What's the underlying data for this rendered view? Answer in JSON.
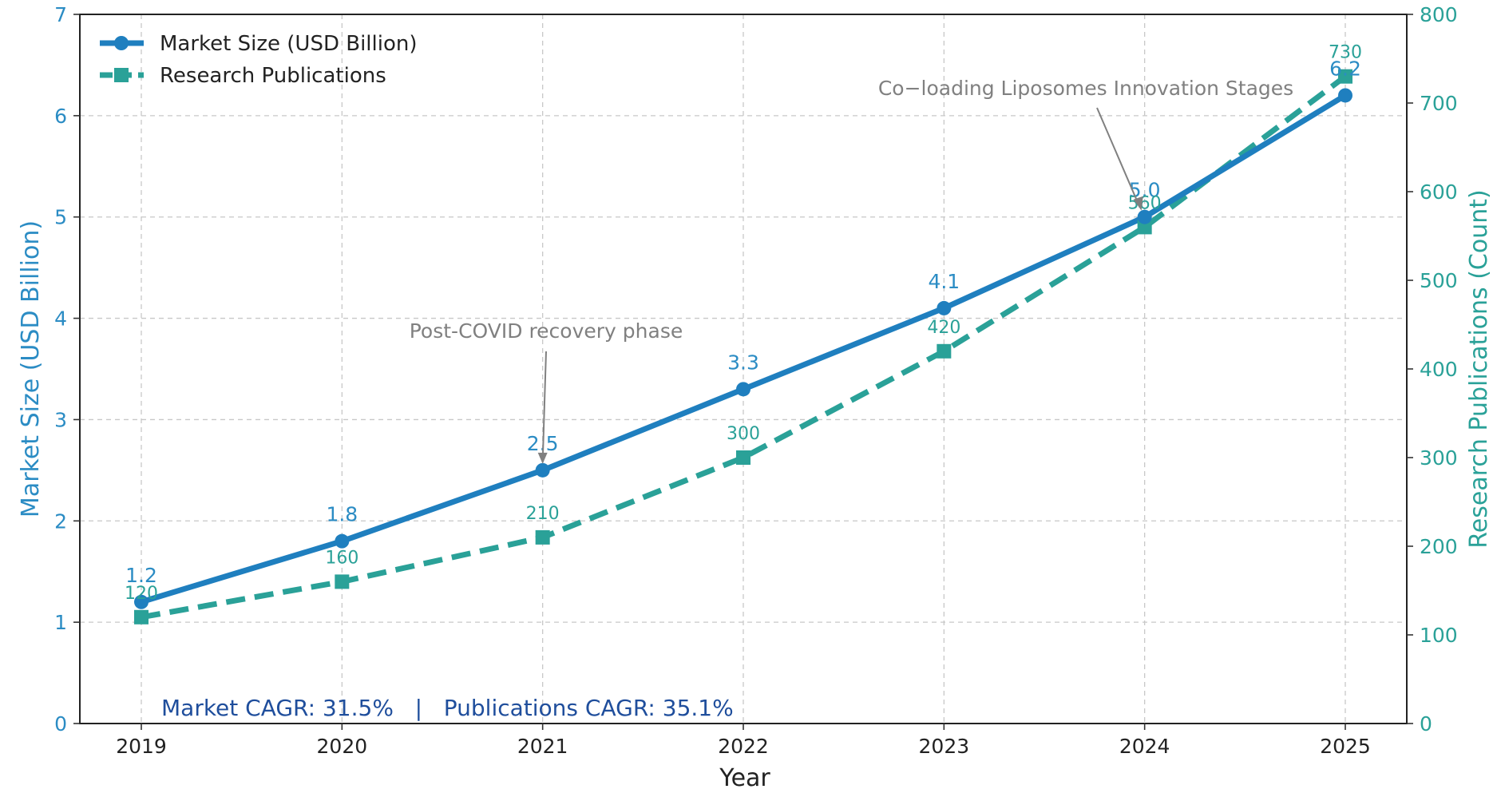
{
  "chart_data": {
    "type": "line",
    "title": "",
    "xlabel": "Year",
    "ylabel": "Market Size (USD Billion)",
    "y2label": "Research Publications (Count)",
    "x": [
      "2019",
      "2020",
      "2021",
      "2022",
      "2023",
      "2024",
      "2025"
    ],
    "ylim": [
      0,
      7
    ],
    "y2lim": [
      0,
      800
    ],
    "yticks": [
      "0",
      "1",
      "2",
      "3",
      "4",
      "5",
      "6",
      "7"
    ],
    "y2ticks": [
      "0",
      "100",
      "200",
      "300",
      "400",
      "500",
      "600",
      "700",
      "800"
    ],
    "grid": true,
    "legend_position": "top-left",
    "series": [
      {
        "name": "Market Size (USD Billion)",
        "axis": "left",
        "values": [
          1.2,
          1.8,
          2.5,
          3.3,
          4.1,
          5.0,
          6.2
        ],
        "labels": [
          "1.2",
          "1.8",
          "2.5",
          "3.3",
          "4.1",
          "5.0",
          "6.2"
        ],
        "color": "#1f7fbf",
        "line_style": "solid",
        "marker": "circle"
      },
      {
        "name": "Research Publications",
        "axis": "right",
        "values": [
          120,
          160,
          210,
          300,
          420,
          560,
          730
        ],
        "labels": [
          "120",
          "160",
          "210",
          "300",
          "420",
          "560",
          "730"
        ],
        "color": "#2aa198",
        "line_style": "dashed",
        "marker": "square"
      }
    ],
    "annotations": [
      {
        "text": "Post-COVID recovery phase",
        "target_x": "2021",
        "target_y": 2.5
      },
      {
        "text": "Co−loading Liposomes Innovation Stages",
        "target_x": "2024",
        "target_y": 5.0
      }
    ],
    "footer_text": "Market CAGR: 31.5%   |   Publications CAGR: 35.1%"
  },
  "colors": {
    "left_axis": "#2b8cc4",
    "right_axis": "#2aa198",
    "footer": "#1f4e9c",
    "annotation": "#808080"
  }
}
